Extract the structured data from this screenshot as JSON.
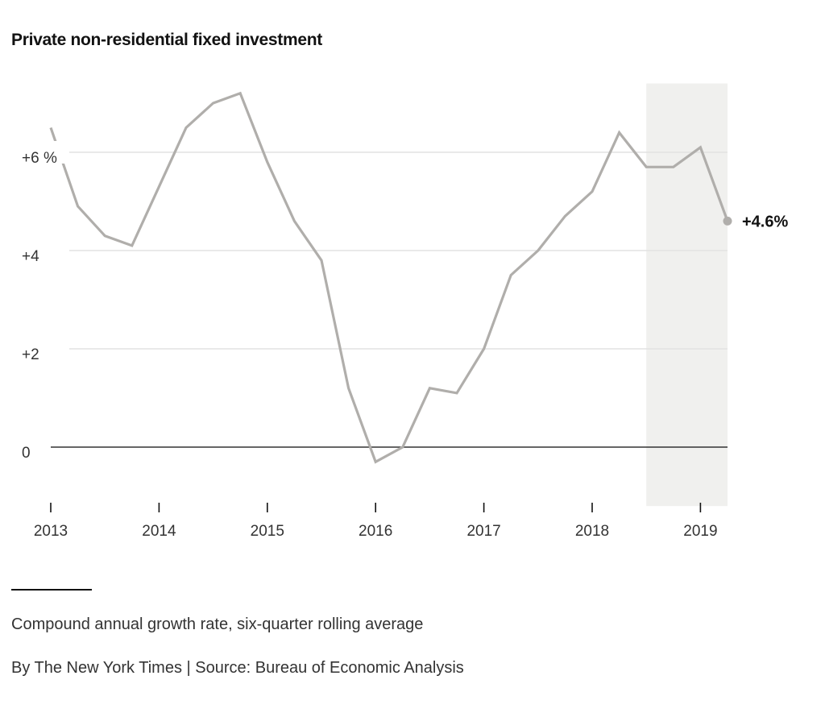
{
  "chart_data": {
    "type": "line",
    "title": "Private non-residential fixed investment",
    "xlabel": "",
    "ylabel": "",
    "xlim": [
      2013.0,
      2019.25
    ],
    "ylim": [
      -1.2,
      7.4
    ],
    "y_ticks": [
      {
        "value": 6,
        "label": "+6 %"
      },
      {
        "value": 4,
        "label": "+4"
      },
      {
        "value": 2,
        "label": "+2"
      },
      {
        "value": 0,
        "label": "0"
      }
    ],
    "x_ticks": [
      {
        "value": 2013,
        "label": "2013"
      },
      {
        "value": 2014,
        "label": "2014"
      },
      {
        "value": 2015,
        "label": "2015"
      },
      {
        "value": 2016,
        "label": "2016"
      },
      {
        "value": 2017,
        "label": "2017"
      },
      {
        "value": 2018,
        "label": "2018"
      },
      {
        "value": 2019,
        "label": "2019"
      }
    ],
    "grid": true,
    "shaded_region": {
      "x_start": 2018.5,
      "x_end": 2019.25,
      "color": "#f0f0ee"
    },
    "series": [
      {
        "color": "#b0aeab",
        "x": [
          2013.0,
          2013.25,
          2013.5,
          2013.75,
          2014.0,
          2014.25,
          2014.5,
          2014.75,
          2015.0,
          2015.25,
          2015.5,
          2015.75,
          2016.0,
          2016.25,
          2016.5,
          2016.75,
          2017.0,
          2017.25,
          2017.5,
          2017.75,
          2018.0,
          2018.25,
          2018.5,
          2018.75,
          2019.0,
          2019.25
        ],
        "values": [
          6.5,
          4.9,
          4.3,
          4.1,
          5.3,
          6.5,
          7.0,
          7.2,
          5.8,
          4.6,
          3.8,
          1.2,
          -0.3,
          0.0,
          1.2,
          1.1,
          2.0,
          3.5,
          4.0,
          4.7,
          5.2,
          6.4,
          5.7,
          5.7,
          6.1,
          4.6
        ]
      }
    ],
    "end_label": "+4.6%",
    "annotations": [
      "Compound annual growth rate, six-quarter rolling average"
    ],
    "source": "By The New York Times | Source: Bureau of Economic Analysis"
  },
  "footer": {
    "note": "Compound annual growth rate, six-quarter rolling average",
    "credit": "By The New York Times | Source: Bureau of Economic Analysis"
  },
  "colors": {
    "line": "#b0aeab",
    "grid": "#e2e2e2",
    "zero_line": "#333333",
    "shade": "#f0f0ee"
  }
}
